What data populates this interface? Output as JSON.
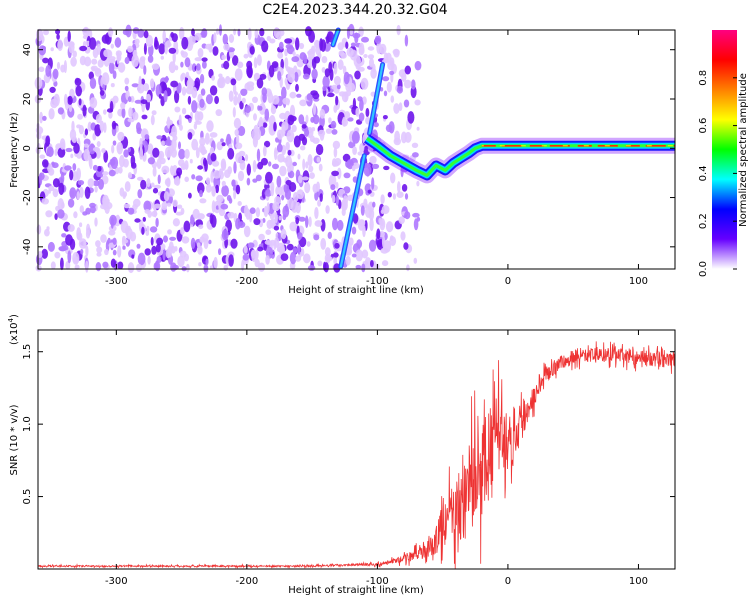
{
  "title": "C2E4.2023.344.20.32.G04",
  "chart_data": [
    {
      "type": "heatmap",
      "xlabel": "Height of straight line (km)",
      "ylabel": "Frequency (Hz)",
      "xlim": [
        -360,
        128
      ],
      "ylim": [
        -49,
        48
      ],
      "xticks": [
        -300,
        -200,
        -100,
        0,
        100
      ],
      "yticks": [
        -40,
        -20,
        0,
        20,
        40
      ],
      "colorbar": {
        "label": "Normalized spectral amplitude",
        "range": [
          0,
          1
        ],
        "ticks": [
          "0.0",
          "0.2",
          "0.4",
          "0.6",
          "0.8"
        ],
        "colors": [
          "#ffffff",
          "#6600ff",
          "#0000ff",
          "#00ffff",
          "#00ff00",
          "#ffff00",
          "#ff8000",
          "#ff0000",
          "#ff0080"
        ]
      },
      "noise_region_x": [
        -360,
        -90
      ],
      "features": [
        {
          "name": "steep streak (lower)",
          "x": [
            -128,
            -110
          ],
          "y": [
            -48,
            -3
          ]
        },
        {
          "name": "steep streak (upper)",
          "x": [
            -106,
            -96
          ],
          "y": [
            6,
            34
          ]
        },
        {
          "name": "top fragment",
          "x": [
            -134,
            -130
          ],
          "y": [
            42,
            48
          ]
        },
        {
          "name": "spectral line",
          "x": [
            -108,
            -100,
            -90,
            -80,
            -70,
            -62,
            -55,
            -48,
            -42,
            -36,
            -30,
            -25,
            -20,
            0,
            25,
            50,
            75,
            100,
            128
          ],
          "y": [
            4,
            1,
            -3,
            -6,
            -9,
            -11,
            -7,
            -9,
            -6,
            -4,
            -2,
            0,
            1,
            1,
            1,
            1,
            1,
            1,
            1
          ]
        }
      ],
      "grid": false
    },
    {
      "type": "line",
      "xlabel": "Height of straight line (km)",
      "ylabel": "SNR (10 * v/v)",
      "y_multiplier": "(x10",
      "y_multiplier_exp": "4",
      "y_multiplier_close": ")",
      "xlim": [
        -360,
        128
      ],
      "ylim": [
        0,
        1.65
      ],
      "xticks": [
        -300,
        -200,
        -100,
        0,
        100
      ],
      "yticks": [
        "0.5",
        "1.0",
        "1.5"
      ],
      "series": [
        {
          "color": "#ee3333",
          "x": [
            -360,
            -300,
            -250,
            -200,
            -150,
            -120,
            -100,
            -90,
            -80,
            -70,
            -60,
            -55,
            -50,
            -45,
            -40,
            -35,
            -30,
            -25,
            -20,
            -15,
            -10,
            -5,
            0,
            5,
            10,
            15,
            20,
            25,
            30,
            40,
            50,
            60,
            70,
            80,
            90,
            100,
            110,
            120,
            128
          ],
          "y": [
            0.02,
            0.02,
            0.02,
            0.02,
            0.02,
            0.03,
            0.03,
            0.05,
            0.07,
            0.1,
            0.14,
            0.2,
            0.3,
            0.35,
            0.4,
            0.45,
            0.55,
            0.6,
            0.7,
            0.8,
            0.9,
            0.95,
            0.85,
            0.9,
            1.0,
            1.1,
            1.2,
            1.3,
            1.35,
            1.42,
            1.46,
            1.48,
            1.47,
            1.48,
            1.47,
            1.46,
            1.45,
            1.44,
            1.44
          ],
          "noise": [
            0.01,
            0.01,
            0.01,
            0.01,
            0.01,
            0.01,
            0.02,
            0.03,
            0.05,
            0.08,
            0.12,
            0.2,
            0.3,
            0.4,
            0.45,
            0.55,
            0.6,
            0.65,
            0.65,
            0.6,
            0.55,
            0.5,
            0.4,
            0.3,
            0.25,
            0.2,
            0.15,
            0.12,
            0.1,
            0.1,
            0.1,
            0.1,
            0.1,
            0.1,
            0.1,
            0.1,
            0.1,
            0.1,
            0.1
          ]
        }
      ],
      "grid": false
    }
  ]
}
